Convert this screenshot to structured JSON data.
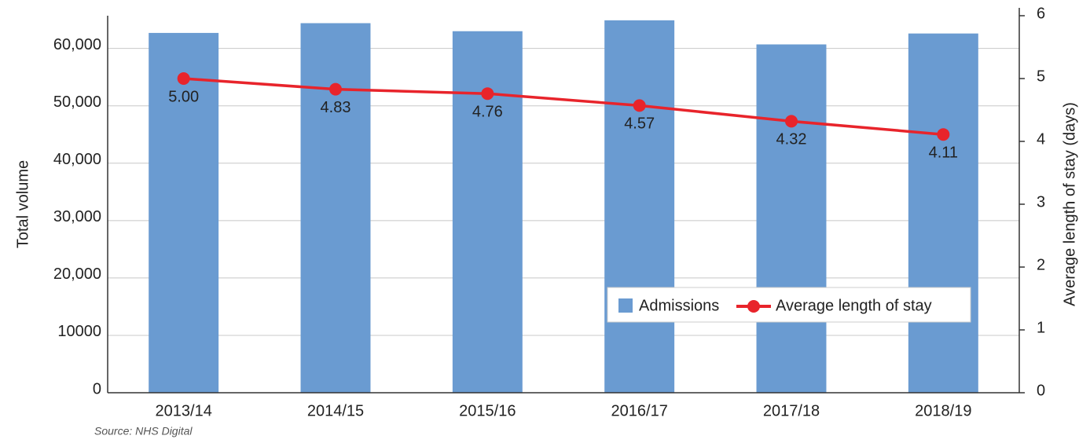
{
  "chart_data": {
    "type": "bar_line",
    "categories": [
      "2013/14",
      "2014/15",
      "2015/16",
      "2016/17",
      "2017/18",
      "2018/19"
    ],
    "series": [
      {
        "name": "Admissions",
        "color": "#6a9bd1",
        "type": "bar",
        "values": [
          62700,
          64400,
          63000,
          64900,
          60700,
          62600
        ]
      },
      {
        "name": "Average length of stay",
        "color": "#e8242b",
        "type": "line",
        "axis": "y2",
        "values": [
          5.0,
          4.83,
          4.76,
          4.57,
          4.32,
          4.11
        ],
        "value_labels": [
          "5.00",
          "4.83",
          "4.76",
          "4.57",
          "4.32",
          "4.11"
        ]
      }
    ],
    "ylabel": "Total volume",
    "y2label": "Average length of stay (days)",
    "ylim": [
      0,
      65700
    ],
    "yticks": [
      0,
      {
        "value": 10000,
        "label": "10000"
      },
      {
        "value": 20000,
        "label": "20,000"
      },
      {
        "value": 30000,
        "label": "30,000"
      },
      {
        "value": 40000,
        "label": "40,000"
      },
      {
        "value": 50000,
        "label": "50,000"
      },
      {
        "value": 60000,
        "label": "60,000"
      }
    ],
    "y2lim": [
      0,
      6
    ],
    "y2ticks": [
      0,
      1,
      2,
      3,
      4,
      5,
      6
    ],
    "grid": true,
    "legend": "lower right",
    "source": "Source: NHS Digital"
  }
}
